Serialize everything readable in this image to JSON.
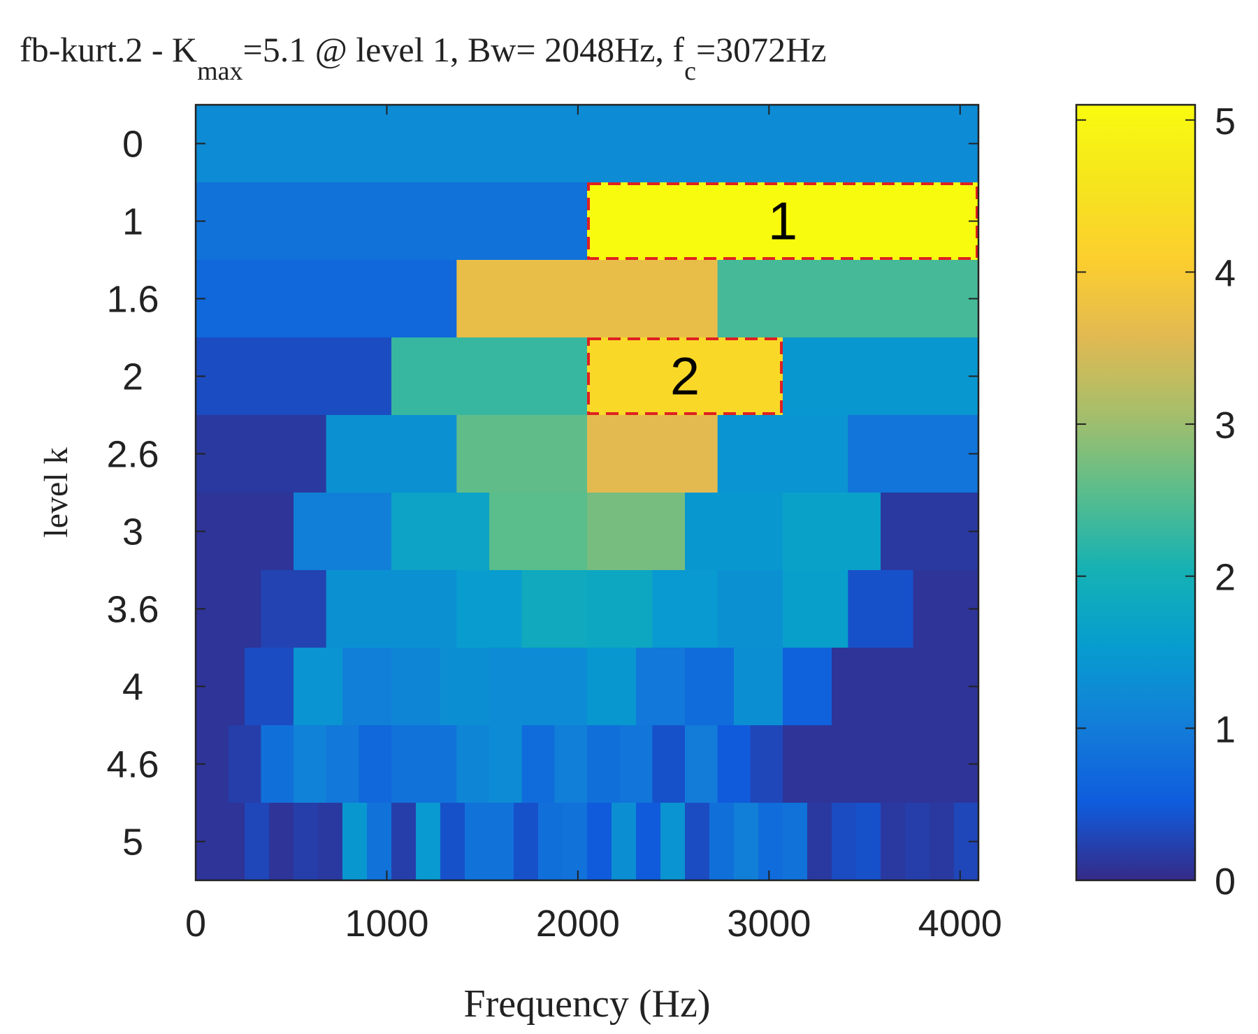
{
  "chart_data": {
    "type": "heatmap",
    "title_parts": {
      "prefix": "fb-kurt.2 - K",
      "kmax_sub": "max",
      "middle": "=5.1 @ level 1, Bw= 2048Hz, f",
      "fc_sub": "c",
      "suffix": "=3072Hz"
    },
    "xlabel": "Frequency (Hz)",
    "ylabel": "level k",
    "xlim": [
      0,
      4096
    ],
    "xticks": [
      0,
      1000,
      2000,
      3000,
      4000
    ],
    "xtick_labels": [
      "0",
      "1000",
      "2000",
      "3000",
      "4000"
    ],
    "ylevels": [
      "0",
      "1",
      "1.6",
      "2",
      "2.6",
      "3",
      "3.6",
      "4",
      "4.6",
      "5"
    ],
    "clim": [
      0,
      5.1
    ],
    "colorbar_ticks": [
      0,
      1,
      2,
      3,
      4,
      5
    ],
    "colorbar_tick_labels": [
      "0",
      "1",
      "2",
      "3",
      "4",
      "5"
    ],
    "rows": [
      [
        1.25
      ],
      [
        0.85,
        5.1
      ],
      [
        0.7,
        3.7,
        2.4
      ],
      [
        0.35,
        2.3,
        4.3,
        1.45
      ],
      [
        0.15,
        1.35,
        2.6,
        3.6,
        1.4,
        0.9
      ],
      [
        0.1,
        1.05,
        1.7,
        2.55,
        2.75,
        1.45,
        1.65,
        0.15
      ],
      [
        0.1,
        0.25,
        1.35,
        1.35,
        1.55,
        1.85,
        1.8,
        1.5,
        1.35,
        1.6,
        0.4,
        0.1
      ],
      [
        0.1,
        0.35,
        1.4,
        1.05,
        1.15,
        1.3,
        1.25,
        1.25,
        1.45,
        0.95,
        0.75,
        1.3,
        0.6,
        0.1,
        0.1,
        0.1
      ],
      [
        0.1,
        0.2,
        0.8,
        1.1,
        0.95,
        0.7,
        0.85,
        0.85,
        1.15,
        1.25,
        0.75,
        1.05,
        0.8,
        0.9,
        0.4,
        1.0,
        0.5,
        0.3,
        0.1,
        0.1,
        0.1,
        0.1,
        0.1,
        0.1
      ],
      [
        0.1,
        0.1,
        0.3,
        0.1,
        0.2,
        0.15,
        1.45,
        0.85,
        0.2,
        1.5,
        0.4,
        0.85,
        0.85,
        0.4,
        0.8,
        0.85,
        0.5,
        1.3,
        0.5,
        1.4,
        0.35,
        0.8,
        1.05,
        0.75,
        0.85,
        0.15,
        0.35,
        0.4,
        0.15,
        0.2,
        0.15,
        0.3
      ]
    ],
    "annotations": [
      {
        "label": "1",
        "row": 1,
        "f_start": 2048,
        "f_end": 4096
      },
      {
        "label": "2",
        "row": 3,
        "f_start": 2048,
        "f_end": 3072
      }
    ],
    "annotation_color": "#e02020",
    "colormap": "parula"
  }
}
